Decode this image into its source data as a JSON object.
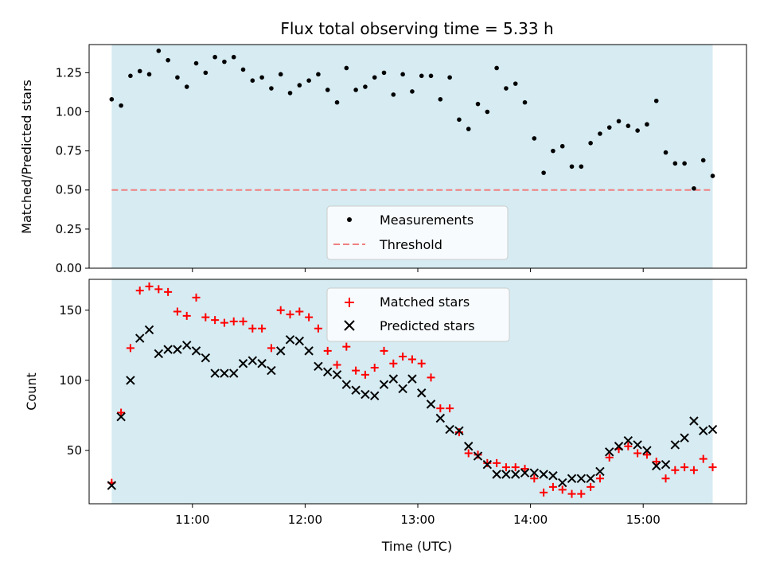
{
  "chart_data": [
    {
      "type": "scatter",
      "title": "Flux total observing time = 5.33 h",
      "ylabel": "Matched/Predicted stars",
      "xlabel": "",
      "xlim": [
        "10:05",
        "15:55"
      ],
      "ylim": [
        0,
        1.43
      ],
      "yticks": [
        "0.00",
        "0.25",
        "0.50",
        "0.75",
        "1.00",
        "1.25"
      ],
      "observing_window": [
        "10:17",
        "15:37"
      ],
      "threshold": 0.5,
      "legend": {
        "position": "lower-center",
        "entries": [
          "Measurements",
          "Threshold"
        ]
      },
      "series": [
        {
          "name": "Measurements",
          "color": "#000000",
          "x": [
            "10:17",
            "10:22",
            "10:27",
            "10:32",
            "10:37",
            "10:42",
            "10:47",
            "10:52",
            "10:57",
            "11:02",
            "11:07",
            "11:12",
            "11:17",
            "11:22",
            "11:27",
            "11:32",
            "11:37",
            "11:42",
            "11:47",
            "11:52",
            "11:57",
            "12:02",
            "12:07",
            "12:12",
            "12:17",
            "12:22",
            "12:27",
            "12:32",
            "12:37",
            "12:42",
            "12:47",
            "12:52",
            "12:57",
            "13:02",
            "13:07",
            "13:12",
            "13:17",
            "13:22",
            "13:27",
            "13:32",
            "13:37",
            "13:42",
            "13:47",
            "13:52",
            "13:57",
            "14:02",
            "14:07",
            "14:12",
            "14:17",
            "14:22",
            "14:27",
            "14:32",
            "14:37",
            "14:42",
            "14:47",
            "14:52",
            "14:57",
            "15:02",
            "15:07",
            "15:12",
            "15:17",
            "15:22",
            "15:27",
            "15:32",
            "15:37"
          ],
          "y": [
            1.08,
            1.04,
            1.23,
            1.26,
            1.24,
            1.39,
            1.33,
            1.22,
            1.16,
            1.31,
            1.25,
            1.35,
            1.32,
            1.35,
            1.27,
            1.2,
            1.22,
            1.15,
            1.24,
            1.12,
            1.17,
            1.2,
            1.24,
            1.14,
            1.06,
            1.28,
            1.14,
            1.16,
            1.22,
            1.25,
            1.11,
            1.24,
            1.13,
            1.23,
            1.23,
            1.08,
            1.22,
            0.95,
            0.89,
            1.05,
            1.0,
            1.28,
            1.15,
            1.18,
            1.06,
            0.83,
            0.61,
            0.75,
            0.78,
            0.65,
            0.65,
            0.8,
            0.86,
            0.9,
            0.94,
            0.91,
            0.88,
            0.92,
            1.07,
            0.74,
            0.67,
            0.67,
            0.51,
            0.69,
            0.59
          ]
        },
        {
          "name": "Threshold",
          "color": "#f08080"
        }
      ]
    },
    {
      "type": "scatter",
      "title": "",
      "ylabel": "Count",
      "xlabel": "Time (UTC)",
      "xlim": [
        "10:05",
        "15:55"
      ],
      "ylim": [
        12,
        172
      ],
      "yticks": [
        "50",
        "100",
        "150"
      ],
      "xticks": [
        "11:00",
        "12:00",
        "13:00",
        "14:00",
        "15:00"
      ],
      "observing_window": [
        "10:17",
        "15:37"
      ],
      "legend": {
        "position": "upper-center",
        "entries": [
          "Matched stars",
          "Predicted stars"
        ]
      },
      "series": [
        {
          "name": "Matched stars",
          "color": "#ff0000",
          "x": [
            "10:17",
            "10:22",
            "10:27",
            "10:32",
            "10:37",
            "10:42",
            "10:47",
            "10:52",
            "10:57",
            "11:02",
            "11:07",
            "11:12",
            "11:17",
            "11:22",
            "11:27",
            "11:32",
            "11:37",
            "11:42",
            "11:47",
            "11:52",
            "11:57",
            "12:02",
            "12:07",
            "12:12",
            "12:17",
            "12:22",
            "12:27",
            "12:32",
            "12:37",
            "12:42",
            "12:47",
            "12:52",
            "12:57",
            "13:02",
            "13:07",
            "13:12",
            "13:17",
            "13:22",
            "13:27",
            "13:32",
            "13:37",
            "13:42",
            "13:47",
            "13:52",
            "13:57",
            "14:02",
            "14:07",
            "14:12",
            "14:17",
            "14:22",
            "14:27",
            "14:32",
            "14:37",
            "14:42",
            "14:47",
            "14:52",
            "14:57",
            "15:02",
            "15:07",
            "15:12",
            "15:17",
            "15:22",
            "15:27",
            "15:32",
            "15:37"
          ],
          "values": [
            27,
            77,
            123,
            164,
            167,
            165,
            163,
            149,
            146,
            159,
            145,
            143,
            141,
            142,
            142,
            137,
            137,
            123,
            150,
            147,
            149,
            145,
            137,
            121,
            111,
            124,
            107,
            104,
            109,
            121,
            112,
            117,
            115,
            112,
            102,
            80,
            80,
            63,
            48,
            47,
            41,
            41,
            38,
            38,
            37,
            30,
            20,
            24,
            22,
            19,
            19,
            24,
            30,
            45,
            51,
            53,
            48,
            47,
            42,
            30,
            36,
            38,
            36,
            44,
            38
          ]
        },
        {
          "name": "Predicted stars",
          "color": "#000000",
          "x": [
            "10:17",
            "10:22",
            "10:27",
            "10:32",
            "10:37",
            "10:42",
            "10:47",
            "10:52",
            "10:57",
            "11:02",
            "11:07",
            "11:12",
            "11:17",
            "11:22",
            "11:27",
            "11:32",
            "11:37",
            "11:42",
            "11:47",
            "11:52",
            "11:57",
            "12:02",
            "12:07",
            "12:12",
            "12:17",
            "12:22",
            "12:27",
            "12:32",
            "12:37",
            "12:42",
            "12:47",
            "12:52",
            "12:57",
            "13:02",
            "13:07",
            "13:12",
            "13:17",
            "13:22",
            "13:27",
            "13:32",
            "13:37",
            "13:42",
            "13:47",
            "13:52",
            "13:57",
            "14:02",
            "14:07",
            "14:12",
            "14:17",
            "14:22",
            "14:27",
            "14:32",
            "14:37",
            "14:42",
            "14:47",
            "14:52",
            "14:57",
            "15:02",
            "15:07",
            "15:12",
            "15:17",
            "15:22",
            "15:27",
            "15:32",
            "15:37"
          ],
          "values": [
            25,
            74,
            100,
            130,
            136,
            119,
            122,
            122,
            125,
            121,
            116,
            105,
            105,
            105,
            112,
            114,
            112,
            107,
            121,
            129,
            128,
            121,
            110,
            106,
            104,
            97,
            93,
            90,
            89,
            97,
            101,
            94,
            101,
            91,
            83,
            73,
            65,
            64,
            53,
            46,
            40,
            33,
            33,
            33,
            34,
            34,
            33,
            32,
            27,
            30,
            30,
            30,
            35,
            49,
            53,
            57,
            54,
            50,
            39,
            40,
            54,
            59,
            71,
            64,
            65
          ]
        }
      ]
    }
  ]
}
